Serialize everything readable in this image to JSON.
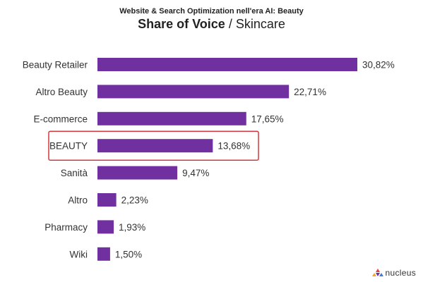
{
  "header": {
    "suptitle": "Website & Search Optimization nell'era AI: Beauty",
    "title_bold": "Share of Voice",
    "title_sep": " / ",
    "title_rest": "Skincare"
  },
  "colors": {
    "bar": "#7030a0",
    "highlight_border": "#d9363e"
  },
  "chart_data": {
    "type": "bar",
    "orientation": "horizontal",
    "categories": [
      "Beauty Retailer",
      "Altro Beauty",
      "E-commerce",
      "BEAUTY",
      "Sanità",
      "Altro",
      "Pharmacy",
      "Wiki"
    ],
    "values": [
      30.82,
      22.71,
      17.65,
      13.68,
      9.47,
      2.23,
      1.93,
      1.5
    ],
    "value_labels": [
      "30,82%",
      "22,71%",
      "17,65%",
      "13,68%",
      "9,47%",
      "2,23%",
      "1,93%",
      "1,50%"
    ],
    "highlighted_category": "BEAUTY",
    "unit": "%",
    "xlim": [
      0,
      30.82
    ],
    "grid": false,
    "legend": "none"
  },
  "logo": {
    "text": "nucleus",
    "icon": "nucleus-logo-icon"
  }
}
